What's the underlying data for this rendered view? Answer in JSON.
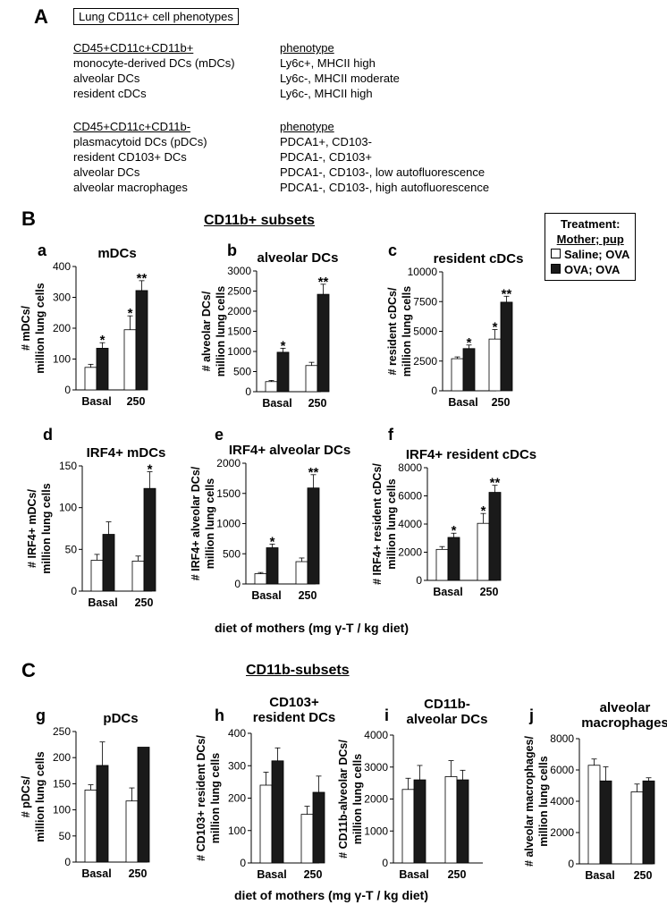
{
  "section_a": {
    "label": "A",
    "box_title": "Lung CD11c+ cell phenotypes",
    "group1_header": "CD45+CD11c+CD11b+",
    "group1_rows": [
      {
        "cell": "monocyte-derived DCs (mDCs)",
        "phen": "Ly6c+, MHCII high"
      },
      {
        "cell": "alveolar DCs",
        "phen": "Ly6c-, MHCII moderate"
      },
      {
        "cell": "resident cDCs",
        "phen": "Ly6c-, MHCII high"
      }
    ],
    "group2_header": "CD45+CD11c+CD11b-",
    "group2_rows": [
      {
        "cell": "plasmacytoid DCs (pDCs)",
        "phen": "PDCA1+, CD103-"
      },
      {
        "cell": "resident CD103+ DCs",
        "phen": "PDCA1-, CD103+"
      },
      {
        "cell": "alveolar DCs",
        "phen": "PDCA1-, CD103-, low autofluorescence"
      },
      {
        "cell": "alveolar macrophages",
        "phen": "PDCA1-, CD103-, high autofluorescence"
      }
    ],
    "phenotype_header": "phenotype"
  },
  "section_b": {
    "label": "B",
    "title": "CD11b+ subsets"
  },
  "section_c": {
    "label": "C",
    "title": "CD11b-subsets"
  },
  "legend": {
    "title": "Treatment:",
    "subtitle": "Mother; pup",
    "items": [
      {
        "label": "Saline; OVA",
        "color": "#ffffff"
      },
      {
        "label": "OVA; OVA",
        "color": "#1a1a1a"
      }
    ]
  },
  "x_axis_label": "diet of mothers (mg γ-T / kg diet)",
  "colors": {
    "saline": "#ffffff",
    "ova": "#1a1a1a",
    "axis": "#000000"
  },
  "chart_data": [
    {
      "id": "a",
      "type": "bar",
      "title": "mDCs",
      "ylabel": [
        "# mDCs/",
        "million lung cells"
      ],
      "categories": [
        "Basal",
        "250"
      ],
      "ylim": [
        0,
        400
      ],
      "yticks": [
        0,
        100,
        200,
        300,
        400
      ],
      "series": [
        {
          "name": "Saline; OVA",
          "values": [
            73,
            195
          ],
          "errors": [
            10,
            45
          ]
        },
        {
          "name": "OVA; OVA",
          "values": [
            135,
            322
          ],
          "errors": [
            18,
            32
          ]
        }
      ],
      "annotations": [
        [
          "",
          "*"
        ],
        [
          "*",
          "**"
        ]
      ]
    },
    {
      "id": "b",
      "type": "bar",
      "title": "alveolar DCs",
      "ylabel": [
        "# alveolar DCs/",
        "million lung cells"
      ],
      "categories": [
        "Basal",
        "250"
      ],
      "ylim": [
        0,
        3000
      ],
      "yticks": [
        0,
        500,
        1000,
        1500,
        2000,
        2500,
        3000
      ],
      "series": [
        {
          "name": "Saline; OVA",
          "values": [
            250,
            650
          ],
          "errors": [
            30,
            80
          ]
        },
        {
          "name": "OVA; OVA",
          "values": [
            980,
            2420
          ],
          "errors": [
            100,
            250
          ]
        }
      ],
      "annotations": [
        [
          "",
          "*"
        ],
        [
          "",
          "**"
        ]
      ]
    },
    {
      "id": "c",
      "type": "bar",
      "title": "resident cDCs",
      "ylabel": [
        "# resident cDCs/",
        "million lung cells"
      ],
      "categories": [
        "Basal",
        "250"
      ],
      "ylim": [
        0,
        10000
      ],
      "yticks": [
        0,
        2500,
        5000,
        7500,
        10000
      ],
      "series": [
        {
          "name": "Saline; OVA",
          "values": [
            2700,
            4350
          ],
          "errors": [
            150,
            800
          ]
        },
        {
          "name": "OVA; OVA",
          "values": [
            3550,
            7450
          ],
          "errors": [
            300,
            500
          ]
        }
      ],
      "annotations": [
        [
          "",
          "*"
        ],
        [
          "*",
          "**"
        ]
      ]
    },
    {
      "id": "d",
      "type": "bar",
      "title": "IRF4+ mDCs",
      "ylabel": [
        "# IRF4+ mDCs/",
        "million lung cells"
      ],
      "categories": [
        "Basal",
        "250"
      ],
      "ylim": [
        0,
        150
      ],
      "yticks": [
        0,
        50,
        100,
        150
      ],
      "series": [
        {
          "name": "Saline; OVA",
          "values": [
            37,
            36
          ],
          "errors": [
            7,
            6
          ]
        },
        {
          "name": "OVA; OVA",
          "values": [
            68,
            123
          ],
          "errors": [
            15,
            20
          ]
        }
      ],
      "annotations": [
        [
          "",
          ""
        ],
        [
          "",
          "*"
        ]
      ]
    },
    {
      "id": "e",
      "type": "bar",
      "title": "IRF4+ alveolar DCs",
      "ylabel": [
        "# IRF4+ alveolar DCs/",
        "million lung cells"
      ],
      "categories": [
        "Basal",
        "250"
      ],
      "ylim": [
        0,
        2000
      ],
      "yticks": [
        0,
        500,
        1000,
        1500,
        2000
      ],
      "series": [
        {
          "name": "Saline; OVA",
          "values": [
            170,
            370
          ],
          "errors": [
            20,
            60
          ]
        },
        {
          "name": "OVA; OVA",
          "values": [
            600,
            1590
          ],
          "errors": [
            60,
            220
          ]
        }
      ],
      "annotations": [
        [
          "",
          "*"
        ],
        [
          "",
          "**"
        ]
      ]
    },
    {
      "id": "f",
      "type": "bar",
      "title": "IRF4+ resident cDCs",
      "ylabel": [
        "# IRF4+ resident cDCs/",
        "million lung cells"
      ],
      "categories": [
        "Basal",
        "250"
      ],
      "ylim": [
        0,
        8000
      ],
      "yticks": [
        0,
        2000,
        4000,
        6000,
        8000
      ],
      "series": [
        {
          "name": "Saline; OVA",
          "values": [
            2200,
            4050
          ],
          "errors": [
            200,
            700
          ]
        },
        {
          "name": "OVA; OVA",
          "values": [
            3050,
            6250
          ],
          "errors": [
            300,
            500
          ]
        }
      ],
      "annotations": [
        [
          "",
          "*"
        ],
        [
          "*",
          "**"
        ]
      ]
    },
    {
      "id": "g",
      "type": "bar",
      "title": "pDCs",
      "ylabel": [
        "# pDCs/",
        "million lung cells"
      ],
      "categories": [
        "Basal",
        "250"
      ],
      "ylim": [
        0,
        250
      ],
      "yticks": [
        0,
        50,
        100,
        150,
        200,
        250
      ],
      "series": [
        {
          "name": "Saline; OVA",
          "values": [
            138,
            117
          ],
          "errors": [
            10,
            25
          ]
        },
        {
          "name": "OVA; OVA",
          "values": [
            185,
            220
          ],
          "errors": [
            45,
            0
          ]
        }
      ],
      "annotations": [
        [
          "",
          ""
        ],
        [
          "",
          ""
        ]
      ]
    },
    {
      "id": "h",
      "type": "bar",
      "title": [
        "CD103+",
        "resident DCs"
      ],
      "ylabel": [
        "# CD103+ resident DCs/",
        "million lung cells"
      ],
      "categories": [
        "Basal",
        "250"
      ],
      "ylim": [
        0,
        400
      ],
      "yticks": [
        0,
        100,
        200,
        300,
        400
      ],
      "series": [
        {
          "name": "Saline; OVA",
          "values": [
            240,
            150
          ],
          "errors": [
            40,
            25
          ]
        },
        {
          "name": "OVA; OVA",
          "values": [
            315,
            218
          ],
          "errors": [
            40,
            50
          ]
        }
      ],
      "annotations": [
        [
          "",
          ""
        ],
        [
          "",
          ""
        ]
      ]
    },
    {
      "id": "i",
      "type": "bar",
      "title": [
        "CD11b-",
        "alveolar DCs"
      ],
      "ylabel": [
        "# CD11b-alveolar DCs/",
        "million lung cells"
      ],
      "categories": [
        "Basal",
        "250"
      ],
      "ylim": [
        0,
        4000
      ],
      "yticks": [
        0,
        1000,
        2000,
        3000,
        4000
      ],
      "series": [
        {
          "name": "Saline; OVA",
          "values": [
            2300,
            2700
          ],
          "errors": [
            350,
            500
          ]
        },
        {
          "name": "OVA; OVA",
          "values": [
            2600,
            2600
          ],
          "errors": [
            450,
            300
          ]
        }
      ],
      "annotations": [
        [
          "",
          ""
        ],
        [
          "",
          ""
        ]
      ]
    },
    {
      "id": "j",
      "type": "bar",
      "title": [
        "alveolar",
        "macrophages"
      ],
      "ylabel": [
        "# alveolar macrophages/",
        "million lung cells"
      ],
      "categories": [
        "Basal",
        "250"
      ],
      "ylim": [
        0,
        8000
      ],
      "yticks": [
        0,
        2000,
        4000,
        6000,
        8000
      ],
      "series": [
        {
          "name": "Saline; OVA",
          "values": [
            6300,
            4600
          ],
          "errors": [
            400,
            500
          ]
        },
        {
          "name": "OVA; OVA",
          "values": [
            5300,
            5300
          ],
          "errors": [
            900,
            200
          ]
        }
      ],
      "annotations": [
        [
          "",
          ""
        ],
        [
          "",
          ""
        ]
      ]
    }
  ]
}
